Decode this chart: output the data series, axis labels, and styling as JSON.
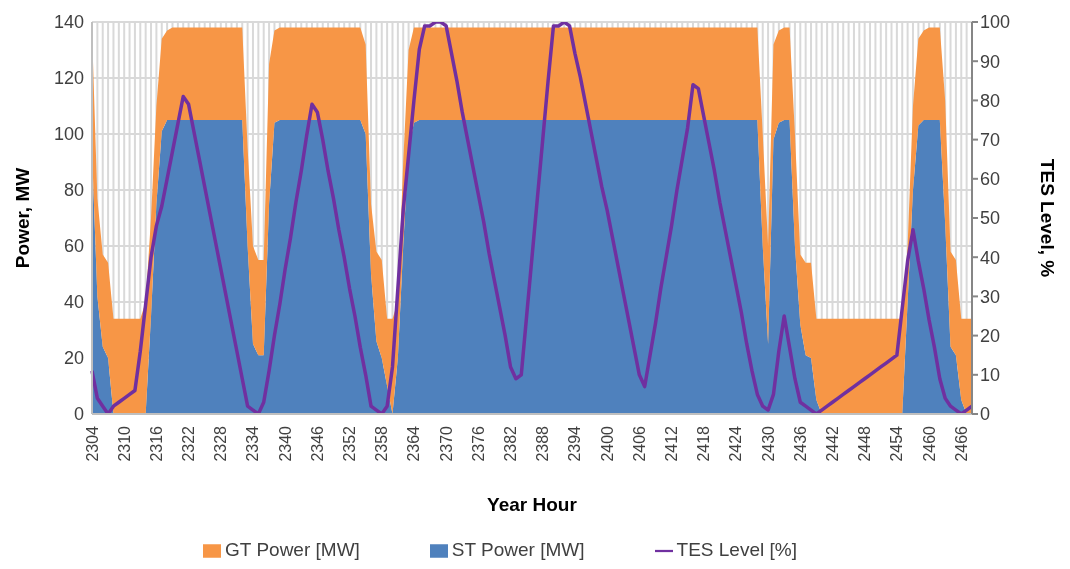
{
  "chart_data": {
    "type": "area",
    "stacked": true,
    "xlabel": "Year Hour",
    "ylabel": "Power, MW",
    "y2label": "TES Level, %",
    "categories": [
      "2304",
      null,
      null,
      null,
      null,
      null,
      "2310",
      null,
      null,
      null,
      null,
      null,
      "2316",
      null,
      null,
      null,
      null,
      null,
      "2322",
      null,
      null,
      null,
      null,
      null,
      "2328",
      null,
      null,
      null,
      null,
      null,
      "2334",
      null,
      null,
      null,
      null,
      null,
      "2340",
      null,
      null,
      null,
      null,
      null,
      "2346",
      null,
      null,
      null,
      null,
      null,
      "2352",
      null,
      null,
      null,
      null,
      null,
      "2358",
      null,
      null,
      null,
      null,
      null,
      "2364",
      null,
      null,
      null,
      null,
      null,
      "2370",
      null,
      null,
      null,
      null,
      null,
      "2376",
      null,
      null,
      null,
      null,
      null,
      "2382",
      null,
      null,
      null,
      null,
      null,
      "2388",
      null,
      null,
      null,
      null,
      null,
      "2394",
      null,
      null,
      null,
      null,
      null,
      "2400",
      null,
      null,
      null,
      null,
      null,
      "2406",
      null,
      null,
      null,
      null,
      null,
      "2412",
      null,
      null,
      null,
      null,
      null,
      "2418",
      null,
      null,
      null,
      null,
      null,
      "2424",
      null,
      null,
      null,
      null,
      null,
      "2430",
      null,
      null,
      null,
      null,
      null,
      "2436",
      null,
      null,
      null,
      null,
      null,
      "2442",
      null,
      null,
      null,
      null,
      null,
      "2448",
      null,
      null,
      null,
      null,
      null,
      "2454",
      null,
      null,
      null,
      null,
      null,
      "2460",
      null,
      null,
      null,
      null,
      null,
      "2466",
      null,
      null
    ],
    "series": [
      {
        "name": "ST Power [MW]",
        "color": "#4f81bd",
        "values": [
          94,
          42,
          24,
          20,
          0,
          0,
          0,
          0,
          0,
          0,
          0,
          35,
          75,
          101,
          105,
          105,
          105,
          105,
          105,
          105,
          105,
          105,
          105,
          105,
          105,
          105,
          105,
          105,
          105,
          60,
          25,
          21,
          21,
          75,
          104,
          105,
          105,
          105,
          105,
          105,
          105,
          105,
          105,
          105,
          105,
          105,
          105,
          105,
          105,
          105,
          105,
          100,
          50,
          26,
          20,
          10,
          0,
          20,
          60,
          95,
          104,
          105,
          105,
          105,
          105,
          105,
          105,
          105,
          105,
          105,
          105,
          105,
          105,
          105,
          105,
          105,
          105,
          105,
          105,
          105,
          105,
          105,
          105,
          105,
          105,
          105,
          105,
          105,
          105,
          105,
          105,
          105,
          105,
          105,
          105,
          105,
          105,
          105,
          105,
          105,
          105,
          105,
          105,
          105,
          105,
          105,
          105,
          105,
          105,
          105,
          105,
          105,
          105,
          105,
          105,
          105,
          105,
          105,
          105,
          105,
          105,
          105,
          105,
          105,
          105,
          60,
          25,
          98,
          104,
          105,
          105,
          60,
          32,
          21,
          20,
          5,
          0,
          0,
          0,
          0,
          0,
          0,
          0,
          0,
          0,
          0,
          0,
          0,
          0,
          0,
          0,
          0,
          40,
          80,
          103,
          105,
          105,
          105,
          105,
          68,
          24,
          21,
          5,
          0,
          0
        ]
      },
      {
        "name": "GT Power [MW]",
        "color": "#f79646",
        "values": [
          43,
          35,
          33,
          34,
          34,
          34,
          34,
          34,
          34,
          34,
          40,
          35,
          35,
          33,
          32,
          33,
          33,
          33,
          33,
          33,
          33,
          33,
          33,
          33,
          33,
          33,
          33,
          33,
          33,
          35,
          35,
          34,
          34,
          50,
          33,
          33,
          33,
          33,
          33,
          33,
          33,
          33,
          33,
          33,
          33,
          33,
          33,
          33,
          33,
          33,
          33,
          32,
          25,
          32,
          35,
          24,
          34,
          20,
          30,
          35,
          34,
          33,
          33,
          33,
          33,
          33,
          33,
          33,
          33,
          33,
          33,
          33,
          33,
          33,
          33,
          33,
          33,
          33,
          33,
          33,
          33,
          33,
          33,
          33,
          33,
          33,
          33,
          33,
          33,
          33,
          33,
          33,
          33,
          33,
          33,
          33,
          33,
          33,
          33,
          33,
          33,
          33,
          33,
          33,
          33,
          33,
          33,
          33,
          33,
          33,
          33,
          33,
          33,
          33,
          33,
          33,
          33,
          33,
          33,
          33,
          33,
          33,
          33,
          33,
          33,
          40,
          35,
          34,
          33,
          33,
          33,
          40,
          25,
          33,
          34,
          29,
          34,
          34,
          34,
          34,
          34,
          34,
          34,
          34,
          34,
          34,
          34,
          34,
          34,
          34,
          34,
          34,
          20,
          30,
          31,
          32,
          33,
          33,
          33,
          44,
          34,
          34,
          29,
          34,
          34
        ]
      },
      {
        "name": "TES Level [%]",
        "type": "line",
        "axis": "y2",
        "color": "#7030a0",
        "values": [
          11,
          4,
          2,
          0,
          2,
          3,
          4,
          5,
          6,
          16,
          28,
          40,
          48,
          53,
          60,
          67,
          74,
          81,
          79,
          72,
          65,
          58,
          51,
          44,
          37,
          30,
          23,
          16,
          9,
          2,
          1,
          0,
          3,
          11,
          20,
          28,
          37,
          45,
          54,
          62,
          71,
          79,
          77,
          70,
          62,
          55,
          47,
          40,
          32,
          25,
          17,
          10,
          2,
          1,
          0,
          2,
          12,
          32,
          52,
          66,
          80,
          93,
          99,
          99,
          100,
          100,
          99,
          92,
          85,
          77,
          70,
          63,
          56,
          49,
          41,
          34,
          27,
          20,
          12,
          9,
          10,
          25,
          40,
          55,
          70,
          85,
          99,
          99,
          100,
          99,
          92,
          86,
          79,
          72,
          65,
          58,
          52,
          45,
          38,
          31,
          24,
          17,
          10,
          7,
          15,
          23,
          32,
          40,
          48,
          57,
          65,
          73,
          84,
          83,
          76,
          69,
          62,
          54,
          47,
          40,
          33,
          26,
          18,
          11,
          5,
          2,
          1,
          5,
          16,
          25,
          17,
          9,
          3,
          2,
          1,
          0,
          1,
          2,
          3,
          4,
          5,
          6,
          7,
          8,
          9,
          10,
          11,
          12,
          13,
          14,
          15,
          27,
          39,
          47,
          39,
          32,
          24,
          17,
          9,
          4,
          2,
          1,
          0,
          1,
          2
        ]
      }
    ],
    "ylim": [
      0,
      140
    ],
    "yticks": [
      0,
      20,
      40,
      60,
      80,
      100,
      120,
      140
    ],
    "y2lim": [
      0,
      100
    ],
    "y2ticks": [
      0,
      10,
      20,
      30,
      40,
      50,
      60,
      70,
      80,
      90,
      100
    ],
    "grid": true,
    "legend": "bottom",
    "marker": "none"
  }
}
